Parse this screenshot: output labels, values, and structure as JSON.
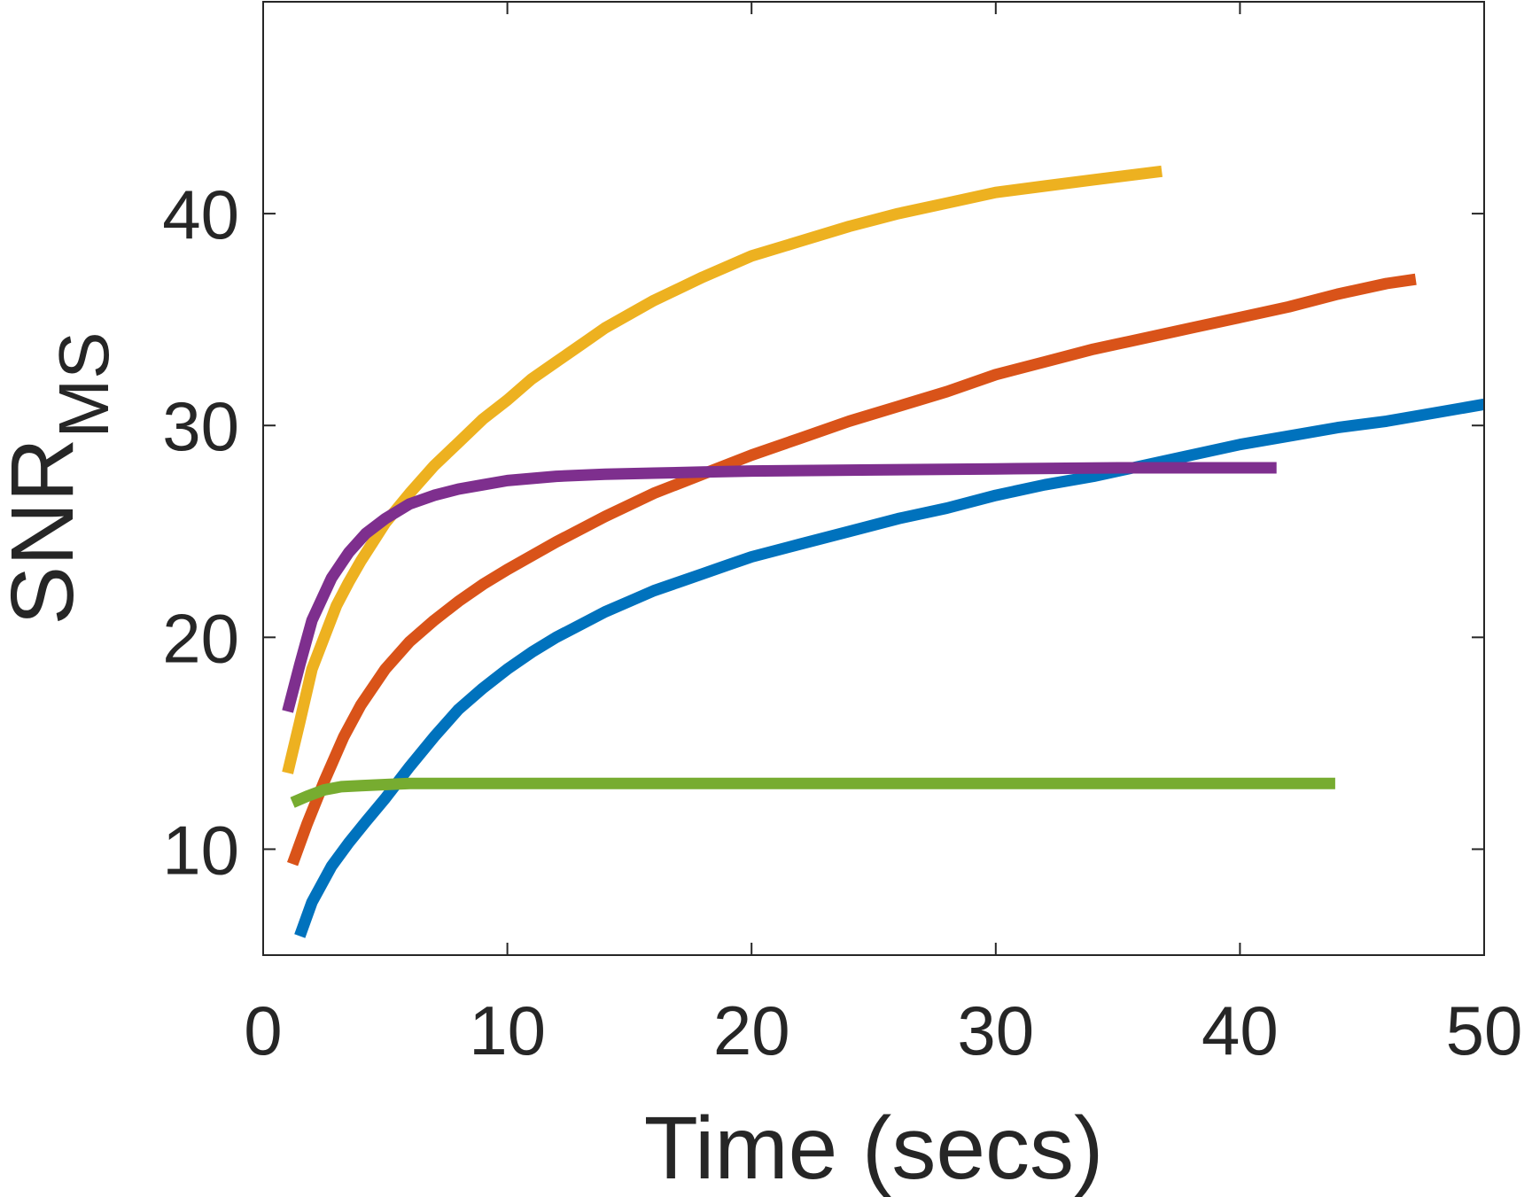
{
  "chart_data": {
    "type": "line",
    "title": "",
    "xlabel": "Time (secs)",
    "ylabel": "SNR",
    "ylabel_subscript": "MS",
    "xlim": [
      0,
      50
    ],
    "ylim": [
      5,
      50
    ],
    "xticks": [
      0,
      10,
      20,
      30,
      40,
      50
    ],
    "yticks": [
      10,
      20,
      30,
      40
    ],
    "grid": false,
    "legend": "none",
    "series": [
      {
        "name": "blue",
        "color": "#0072BD",
        "x": [
          1.5,
          2.0,
          2.8,
          3.5,
          4.2,
          5.0,
          6.0,
          7.0,
          8.0,
          9.0,
          10.0,
          11.0,
          12.0,
          13.0,
          14.0,
          15.0,
          16.0,
          17.0,
          18.0,
          19.0,
          20.0,
          22.0,
          24.0,
          26.0,
          28.0,
          30.0,
          32.0,
          34.0,
          36.0,
          38.0,
          40.0,
          42.0,
          44.0,
          46.0,
          48.0,
          50.0
        ],
        "y": [
          5.9,
          7.5,
          9.2,
          10.3,
          11.3,
          12.4,
          13.9,
          15.3,
          16.6,
          17.6,
          18.5,
          19.3,
          20.0,
          20.6,
          21.2,
          21.7,
          22.2,
          22.6,
          23.0,
          23.4,
          23.8,
          24.4,
          25.0,
          25.6,
          26.1,
          26.7,
          27.2,
          27.6,
          28.1,
          28.6,
          29.1,
          29.5,
          29.9,
          30.2,
          30.6,
          31.0
        ]
      },
      {
        "name": "orange",
        "color": "#D95319",
        "x": [
          1.2,
          1.8,
          2.5,
          3.3,
          4.0,
          5.0,
          6.0,
          7.0,
          8.0,
          9.0,
          10.0,
          12.0,
          14.0,
          16.0,
          18.0,
          20.0,
          22.0,
          24.0,
          26.0,
          28.0,
          30.0,
          32.0,
          34.0,
          36.0,
          38.0,
          40.0,
          42.0,
          44.0,
          46.0,
          47.2
        ],
        "y": [
          9.3,
          11.2,
          13.2,
          15.3,
          16.8,
          18.5,
          19.8,
          20.8,
          21.7,
          22.5,
          23.2,
          24.5,
          25.7,
          26.8,
          27.7,
          28.6,
          29.4,
          30.2,
          30.9,
          31.6,
          32.4,
          33.0,
          33.6,
          34.1,
          34.6,
          35.1,
          35.6,
          36.2,
          36.7,
          36.9
        ]
      },
      {
        "name": "yellow",
        "color": "#EDB120",
        "x": [
          1.0,
          1.5,
          2.0,
          2.5,
          3.0,
          3.5,
          4.0,
          5.0,
          6.0,
          7.0,
          8.0,
          9.0,
          10.0,
          11.0,
          12.0,
          13.0,
          14.0,
          16.0,
          18.0,
          20.0,
          22.0,
          24.0,
          26.0,
          28.0,
          30.0,
          32.0,
          34.0,
          36.8
        ],
        "y": [
          13.6,
          16.0,
          18.5,
          20.0,
          21.5,
          22.6,
          23.6,
          25.4,
          26.8,
          28.1,
          29.2,
          30.3,
          31.2,
          32.2,
          33.0,
          33.8,
          34.6,
          35.9,
          37.0,
          38.0,
          38.7,
          39.4,
          40.0,
          40.5,
          41.0,
          41.3,
          41.6,
          42.0
        ]
      },
      {
        "name": "purple",
        "color": "#7E2F8E",
        "x": [
          1.0,
          1.5,
          2.0,
          2.8,
          3.5,
          4.2,
          5.0,
          6.0,
          7.0,
          8.0,
          9.0,
          10.0,
          12.0,
          14.0,
          16.0,
          18.0,
          20.0,
          25.0,
          30.0,
          35.0,
          41.5
        ],
        "y": [
          16.5,
          18.7,
          20.8,
          22.8,
          24.0,
          24.9,
          25.6,
          26.3,
          26.7,
          27.0,
          27.2,
          27.4,
          27.6,
          27.7,
          27.75,
          27.8,
          27.85,
          27.9,
          27.95,
          28.0,
          28.0
        ]
      },
      {
        "name": "green",
        "color": "#77AC30",
        "x": [
          1.2,
          1.8,
          2.5,
          3.2,
          4.0,
          5.0,
          6.0,
          8.0,
          10.0,
          15.0,
          20.0,
          25.0,
          30.0,
          35.0,
          40.0,
          43.9
        ],
        "y": [
          12.2,
          12.5,
          12.8,
          12.95,
          13.0,
          13.05,
          13.1,
          13.1,
          13.1,
          13.1,
          13.1,
          13.1,
          13.1,
          13.1,
          13.1,
          13.1
        ]
      }
    ]
  }
}
